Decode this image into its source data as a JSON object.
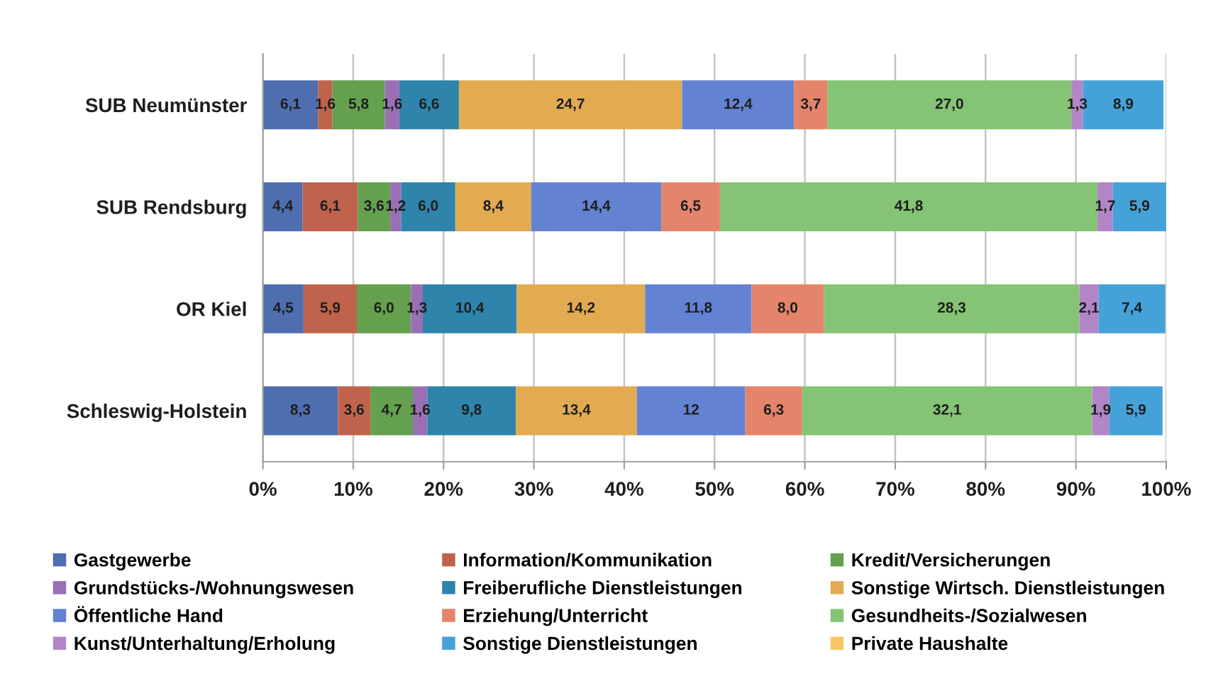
{
  "chart_data": {
    "type": "bar",
    "orientation": "horizontal",
    "stacked": true,
    "categories": [
      "SUB Neumünster",
      "SUB Rendsburg",
      "OR Kiel",
      "Schleswig-Holstein"
    ],
    "series": [
      {
        "name": "Gastgewerbe",
        "color": "#4f6eb0",
        "values": [
          6.1,
          4.4,
          4.5,
          8.3
        ],
        "value_labels": [
          "6,1",
          "4,4",
          "4,5",
          "8,3"
        ]
      },
      {
        "name": "Information/Kommunikation",
        "color": "#c0634c",
        "values": [
          1.6,
          6.1,
          5.9,
          3.6
        ],
        "value_labels": [
          "1,6",
          "6,1",
          "5,9",
          "3,6"
        ]
      },
      {
        "name": "Kredit/Versicherungen",
        "color": "#64a04e",
        "values": [
          5.8,
          3.6,
          6.0,
          4.7
        ],
        "value_labels": [
          "5,8",
          "3,6",
          "6,0",
          "4,7"
        ]
      },
      {
        "name": "Grundstücks-/Wohnungswesen",
        "color": "#9a70b4",
        "values": [
          1.6,
          1.2,
          1.3,
          1.6
        ],
        "value_labels": [
          "1,6",
          "1,2",
          "1,3",
          "1,6"
        ]
      },
      {
        "name": "Freiberufliche Dienstleistungen",
        "color": "#2e84aa",
        "values": [
          6.6,
          6.0,
          10.4,
          9.8
        ],
        "value_labels": [
          "6,6",
          "6,0",
          "10,4",
          "9,8"
        ]
      },
      {
        "name": "Sonstige Wirtsch. Dienstleistungen",
        "color": "#e2ab52",
        "values": [
          24.7,
          8.4,
          14.2,
          13.4
        ],
        "value_labels": [
          "24,7",
          "8,4",
          "14,2",
          "13,4"
        ]
      },
      {
        "name": "Öffentliche Hand",
        "color": "#6482d2",
        "values": [
          12.4,
          14.4,
          11.8,
          12
        ],
        "value_labels": [
          "12,4",
          "14,4",
          "11,8",
          "12"
        ]
      },
      {
        "name": "Erziehung/Unterricht",
        "color": "#e4846a",
        "values": [
          3.7,
          6.5,
          8.0,
          6.3
        ],
        "value_labels": [
          "3,7",
          "6,5",
          "8,0",
          "6,3"
        ]
      },
      {
        "name": "Gesundheits-/Sozialwesen",
        "color": "#84c474",
        "values": [
          27.0,
          41.8,
          28.3,
          32.1
        ],
        "value_labels": [
          "27,0",
          "41,8",
          "28,3",
          "32,1"
        ]
      },
      {
        "name": "Kunst/Unterhaltung/Erholung",
        "color": "#b286c6",
        "values": [
          1.3,
          1.7,
          2.1,
          1.9
        ],
        "value_labels": [
          "1,3",
          "1,7",
          "2,1",
          "1,9"
        ]
      },
      {
        "name": "Sonstige Dienstleistungen",
        "color": "#44a2d8",
        "values": [
          8.9,
          5.9,
          7.4,
          5.9
        ],
        "value_labels": [
          "8,9",
          "5,9",
          "7,4",
          "5,9"
        ]
      },
      {
        "name": "Private Haushalte",
        "color": "#fac564",
        "values": [
          null,
          null,
          null,
          null
        ]
      }
    ],
    "xlim": [
      0,
      100
    ],
    "xticks": [
      {
        "value": 0,
        "label": "0%"
      },
      {
        "value": 10,
        "label": "10%"
      },
      {
        "value": 20,
        "label": "20%"
      },
      {
        "value": 30,
        "label": "30%"
      },
      {
        "value": 40,
        "label": "40%"
      },
      {
        "value": 50,
        "label": "50%"
      },
      {
        "value": 60,
        "label": "60%"
      },
      {
        "value": 70,
        "label": "70%"
      },
      {
        "value": 80,
        "label": "80%"
      },
      {
        "value": 90,
        "label": "90%"
      },
      {
        "value": 100,
        "label": "100%"
      }
    ],
    "grid": "x",
    "legend": "bottom"
  }
}
